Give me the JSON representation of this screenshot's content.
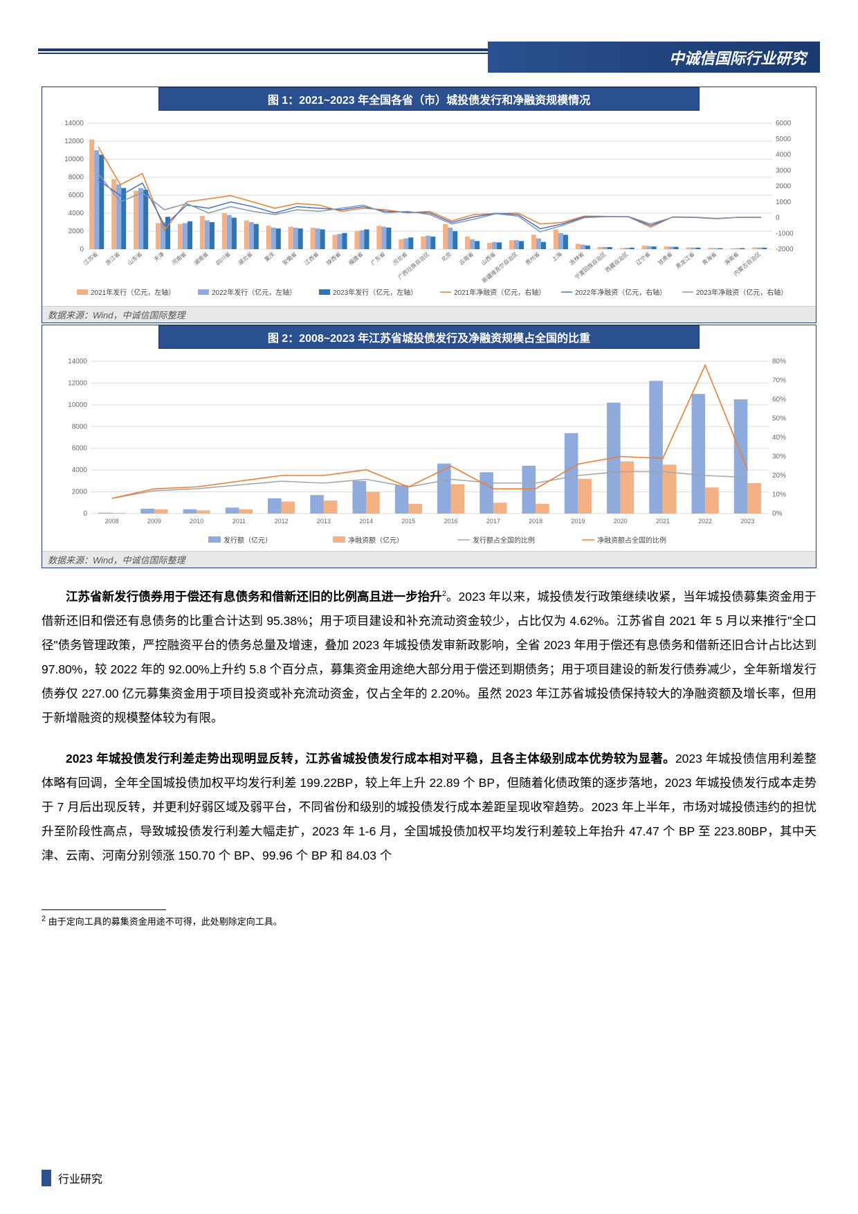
{
  "header": {
    "title": "中诚信国际行业研究"
  },
  "chart1": {
    "title": "图 1：2021~2023 年全国各省（市）城投债发行和净融资规模情况",
    "source": "数据来源：Wind，中诚信国际整理",
    "left_ticks": [
      0,
      2000,
      4000,
      6000,
      8000,
      10000,
      12000,
      14000
    ],
    "right_ticks": [
      -2000,
      -1000,
      0,
      1000,
      2000,
      3000,
      4000,
      5000,
      6000
    ],
    "categories": [
      "江苏省",
      "浙江省",
      "山东省",
      "天津",
      "河南省",
      "湖南省",
      "四川省",
      "湖北省",
      "重庆",
      "安徽省",
      "江西省",
      "陕西省",
      "福建省",
      "广东省",
      "河北省",
      "广西壮族自治区",
      "北京",
      "云南省",
      "山西省",
      "新疆维吾尔自治区",
      "贵州省",
      "上海",
      "吉林省",
      "宁夏回族自治区",
      "西藏自治区",
      "辽宁省",
      "甘肃省",
      "黑龙江省",
      "青海省",
      "海南省",
      "内蒙古自治区"
    ],
    "bars": {
      "y2021": [
        12200,
        7800,
        6500,
        2900,
        2800,
        3700,
        4000,
        3200,
        2600,
        2500,
        2400,
        1600,
        2000,
        2600,
        1100,
        1400,
        2800,
        1400,
        700,
        1000,
        1600,
        2200,
        600,
        250,
        120,
        400,
        300,
        200,
        150,
        100,
        200
      ],
      "y2022": [
        11000,
        7200,
        6800,
        3000,
        2900,
        3200,
        3800,
        3000,
        2400,
        2400,
        2300,
        1700,
        2100,
        2500,
        1200,
        1500,
        2400,
        1100,
        800,
        1000,
        1200,
        1800,
        500,
        240,
        150,
        350,
        280,
        180,
        120,
        110,
        180
      ],
      "y2023": [
        10500,
        6800,
        6600,
        3600,
        3100,
        3000,
        3500,
        2800,
        2300,
        2300,
        2200,
        1800,
        2200,
        2400,
        1300,
        1400,
        2000,
        900,
        750,
        900,
        800,
        1600,
        400,
        230,
        170,
        300,
        260,
        170,
        110,
        120,
        170
      ]
    },
    "lines": {
      "y2021": [
        4500,
        2100,
        2800,
        -800,
        1000,
        1200,
        1400,
        1000,
        600,
        900,
        800,
        400,
        600,
        500,
        300,
        400,
        -200,
        200,
        250,
        300,
        -400,
        -300,
        100,
        80,
        50,
        -600,
        50,
        30,
        -50,
        20,
        30
      ],
      "y2022": [
        2400,
        1400,
        2200,
        -500,
        800,
        600,
        1000,
        700,
        300,
        700,
        600,
        500,
        700,
        400,
        350,
        300,
        -300,
        50,
        280,
        200,
        -700,
        -400,
        50,
        70,
        60,
        -500,
        40,
        20,
        -60,
        25,
        20
      ],
      "y2023": [
        2800,
        1000,
        1600,
        500,
        900,
        300,
        700,
        400,
        200,
        500,
        400,
        600,
        800,
        300,
        400,
        200,
        -400,
        -100,
        250,
        100,
        -900,
        -500,
        0,
        60,
        70,
        -400,
        30,
        10,
        -70,
        30,
        15
      ]
    },
    "colors": {
      "bar2021": "#f4b183",
      "bar2022": "#8faadc",
      "bar2023": "#2e75b6",
      "line2021": "#ed7d31",
      "line2022": "#4472c4",
      "line2023": "#8497b0",
      "grid": "#d9d9d9",
      "axis_text": "#666666"
    },
    "legend": {
      "b1": "2021年发行（亿元，左轴）",
      "b2": "2022年发行（亿元，左轴）",
      "b3": "2023年发行（亿元，左轴）",
      "l1": "2021年净融资（亿元，右轴）",
      "l2": "2022年净融资（亿元，右轴）",
      "l3": "2023年净融资（亿元，右轴）"
    }
  },
  "chart2": {
    "title": "图 2：2008~2023 年江苏省城投债发行及净融资规模占全国的比重",
    "source": "数据来源：Wind，中诚信国际整理",
    "left_ticks": [
      0,
      2000,
      4000,
      6000,
      8000,
      10000,
      12000,
      14000
    ],
    "right_ticks": [
      "0%",
      "10%",
      "20%",
      "30%",
      "40%",
      "50%",
      "60%",
      "70%",
      "80%"
    ],
    "years": [
      2008,
      2009,
      2010,
      2011,
      2012,
      2013,
      2014,
      2015,
      2016,
      2017,
      2018,
      2019,
      2020,
      2021,
      2022,
      2023
    ],
    "issue": [
      80,
      450,
      400,
      550,
      1400,
      1700,
      3000,
      2600,
      4600,
      3800,
      4400,
      7400,
      10200,
      12200,
      11000,
      10500
    ],
    "net": [
      60,
      400,
      300,
      400,
      1100,
      1200,
      2000,
      900,
      2700,
      1000,
      900,
      3200,
      4800,
      4500,
      2400,
      2800
    ],
    "issue_pct": [
      8,
      12,
      13,
      15,
      17,
      16,
      18,
      14,
      18,
      16,
      16,
      20,
      22,
      22,
      20,
      19
    ],
    "net_pct": [
      8,
      13,
      14,
      17,
      20,
      20,
      23,
      14,
      25,
      13,
      13,
      26,
      30,
      29,
      78,
      23
    ],
    "colors": {
      "issue": "#8faadc",
      "net": "#f4b183",
      "issue_line": "#a5a5a5",
      "net_line": "#ed7d31",
      "grid": "#d9d9d9"
    },
    "legend": {
      "b1": "发行额（亿元）",
      "b2": "净融资额（亿元）",
      "l1": "发行额占全国的比例",
      "l2": "净融资额占全国的比例"
    }
  },
  "paragraphs": {
    "p1_bold": "江苏省新发行债券用于偿还有息债务和借新还旧的比例高且进一步抬升",
    "p1_sup": "2",
    "p1_rest": "。2023 年以来，城投债发行政策继续收紧，当年城投债募集资金用于借新还旧和偿还有息债务的比重合计达到 95.38%；用于项目建设和补充流动资金较少，占比仅为 4.62%。江苏省自 2021 年 5 月以来推行\"全口径\"债务管理政策，严控融资平台的债务总量及增速，叠加 2023 年城投债发审新政影响，全省 2023 年用于偿还有息债务和借新还旧合计占比达到 97.80%，较 2022 年的 92.00%上升约 5.8 个百分点，募集资金用途绝大部分用于偿还到期债务；用于项目建设的新发行债券减少，全年新增发行债券仅 227.00 亿元募集资金用于项目投资或补充流动资金，仅占全年的 2.20%。虽然 2023 年江苏省城投债保持较大的净融资额及增长率，但用于新增融资的规模整体较为有限。",
    "p2_bold": "2023 年城投债发行利差走势出现明显反转，江苏省城投债发行成本相对平稳，且各主体级别成本优势较为显著。",
    "p2_rest": "2023 年城投债信用利差整体略有回调，全年全国城投债加权平均发行利差 199.22BP，较上年上升 22.89 个 BP，但随着化债政策的逐步落地，2023 年城投债发行成本走势于 7 月后出现反转，并更利好弱区域及弱平台，不同省份和级别的城投债发行成本差距呈现收窄趋势。2023 年上半年，市场对城投债违约的担忧升至阶段性高点，导致城投债发行利差大幅走扩，2023 年 1-6 月，全国城投债加权平均发行利差较上年抬升 47.47 个 BP 至 223.80BP，其中天津、云南、河南分别领涨 150.70 个 BP、99.96 个 BP 和 84.03 个"
  },
  "footnote": {
    "marker": "2",
    "text": " 由于定向工具的募集资金用途不可得，此处剔除定向工具。"
  },
  "footer": {
    "label": "行业研究"
  }
}
